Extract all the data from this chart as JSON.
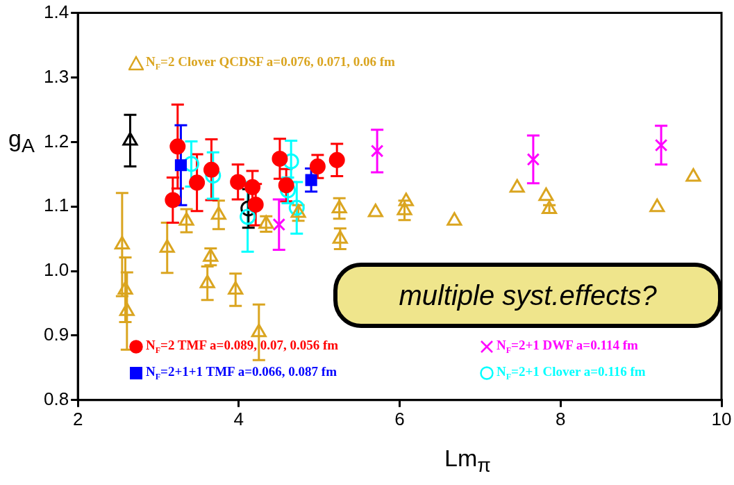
{
  "chart_data": {
    "type": "scatter",
    "xlabel": "Lm$_{π}$",
    "ylabel": "g$_{A}$",
    "xlim": [
      2,
      10
    ],
    "xticks": [
      2,
      4,
      6,
      8,
      10
    ],
    "ylim": [
      0.8,
      1.4
    ],
    "yticks": [
      0.8,
      0.9,
      {
        "value": 1,
        "label": "1.0"
      },
      1.1,
      1.2,
      1.3,
      1.4
    ],
    "grid": false,
    "legend": "bottom left",
    "annotations": [
      "multiple syst.effects?"
    ],
    "series": [
      {
        "name": "N$_{F}$=2 Clover QCDSF a=0.076, 0.071, 0.06 fm",
        "color": "#daa520",
        "marker": "triangle",
        "x": [
          2.55,
          2.59,
          2.61,
          3.11,
          3.35,
          3.61,
          3.65,
          3.75,
          3.96,
          4.25,
          4.34,
          4.74,
          5.25,
          5.26,
          5.7,
          6.08,
          6.06,
          6.68,
          7.46,
          7.82,
          7.86,
          9.2,
          9.65
        ],
        "values": [
          1.041,
          0.971,
          0.938,
          1.036,
          1.078,
          0.981,
          1.022,
          1.087,
          0.971,
          0.905,
          1.073,
          1.09,
          1.097,
          1.05,
          1.091,
          1.108,
          1.094,
          1.078,
          1.129,
          1.116,
          1.096,
          1.099,
          1.146
        ],
        "errors": [
          0.08,
          0.05,
          0.06,
          0.039,
          0.018,
          0.026,
          0.013,
          0.022,
          0.025,
          0.043,
          0.012,
          0.012,
          0.016,
          0.016,
          null,
          null,
          0.015,
          null,
          null,
          null,
          0.006,
          null,
          null
        ]
      },
      {
        "name": "N$_{F}$=2 TMF a=0.089, 0.07, 0.056 fm",
        "color": "#ff0000",
        "marker": "circle",
        "x": [
          3.18,
          3.24,
          3.48,
          3.66,
          3.99,
          4.17,
          4.21,
          4.51,
          4.59,
          4.98,
          5.22
        ],
        "values": [
          1.11,
          1.193,
          1.137,
          1.157,
          1.138,
          1.13,
          1.103,
          1.174,
          1.133,
          1.162,
          1.172
        ],
        "errors": [
          0.035,
          0.065,
          0.044,
          0.047,
          0.027,
          0.025,
          0.032,
          0.031,
          0.025,
          0.018,
          0.025
        ]
      },
      {
        "name": "N$_{F}$=2+1+1 TMF a=0.066, 0.087 fm",
        "color": "#0000ff",
        "marker": "square",
        "x": [
          3.28,
          4.9
        ],
        "values": [
          1.164,
          1.141
        ],
        "errors": [
          0.062,
          0.018
        ]
      },
      {
        "name": "N$_{F}$=2+1 DWF a=0.114 fm",
        "color": "#ff00ff",
        "marker": "cross",
        "x": [
          4.5,
          5.72,
          7.66,
          9.25
        ],
        "values": [
          1.072,
          1.186,
          1.173,
          1.195
        ],
        "errors": [
          0.039,
          0.033,
          0.037,
          0.03
        ]
      },
      {
        "name": "N$_{F}$=2+1 Clover a=0.116 fm",
        "color": "#00ffff",
        "marker": "circle",
        "x": [
          3.41,
          3.68,
          4.11,
          4.65,
          4.61,
          4.72
        ],
        "values": [
          1.166,
          1.148,
          1.084,
          1.17,
          1.125,
          1.098
        ],
        "errors": [
          0.035,
          0.036,
          0.054,
          0.032,
          0.02,
          0.04
        ]
      },
      {
        "color": "#000000",
        "marker": "triangle",
        "x": [
          2.65
        ],
        "values": [
          1.202
        ],
        "errors": [
          0.04
        ]
      },
      {
        "color": "#000000",
        "marker": "circle",
        "x": [
          4.12
        ],
        "values": [
          1.097
        ],
        "errors": [
          0.03
        ]
      }
    ]
  }
}
